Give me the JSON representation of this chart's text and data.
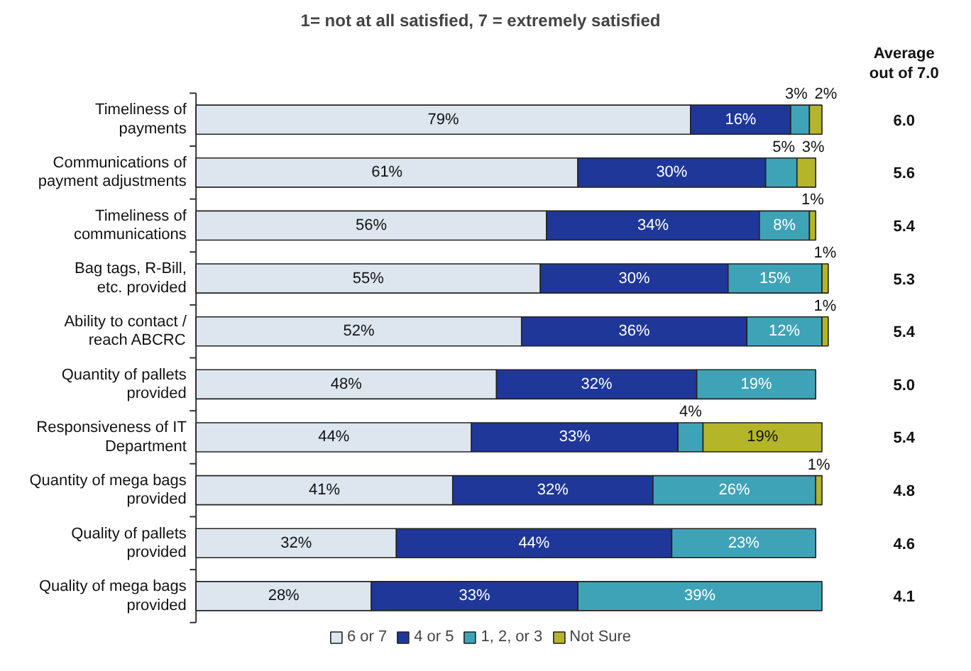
{
  "chart_data": {
    "type": "bar",
    "orientation": "horizontal",
    "stacked": true,
    "title": "1= not at all satisfied, 7 = extremely satisfied",
    "categories": [
      "Timeliness of payments",
      "Communications of payment adjustments",
      "Timeliness of communications",
      "Bag tags, R-Bill, etc. provided",
      "Ability to contact / reach ABCRC",
      "Quantity of pallets provided",
      "Responsiveness of IT Department",
      "Quantity of mega bags provided",
      "Quality of pallets provided",
      "Quality of mega bags provided"
    ],
    "series": [
      {
        "name": "6 or 7",
        "color": "#dde6ef",
        "values": [
          79,
          61,
          56,
          55,
          52,
          48,
          44,
          41,
          32,
          28
        ],
        "value_labels": [
          "79%",
          "61%",
          "56%",
          "55%",
          "52%",
          "48%",
          "44%",
          "41%",
          "32%",
          "28%"
        ]
      },
      {
        "name": "4 or 5",
        "color": "#1f3799",
        "values": [
          16,
          30,
          34,
          30,
          36,
          32,
          33,
          32,
          44,
          33
        ],
        "value_labels": [
          "16%",
          "30%",
          "34%",
          "30%",
          "36%",
          "32%",
          "33%",
          "32%",
          "44%",
          "33%"
        ]
      },
      {
        "name": "1, 2, or 3",
        "color": "#3fa3b8",
        "values": [
          3,
          5,
          8,
          15,
          12,
          19,
          4,
          26,
          23,
          39
        ],
        "value_labels": [
          "3%",
          "5%",
          "8%",
          "15%",
          "12%",
          "19%",
          "4%",
          "26%",
          "23%",
          "39%"
        ]
      },
      {
        "name": "Not Sure",
        "color": "#b5b52a",
        "values": [
          2,
          3,
          1,
          1,
          1,
          null,
          19,
          1,
          null,
          null
        ],
        "value_labels": [
          "2%",
          "3%",
          "1%",
          "1%",
          "1%",
          null,
          "19%",
          "1%",
          null,
          null
        ]
      }
    ],
    "annotations": [
      "Average\nout of 7.0",
      "6.0",
      "5.6",
      "5.4",
      "5.3",
      "5.4",
      "5.0",
      "5.4",
      "4.8",
      "4.6",
      "4.1"
    ],
    "legend": "bottom",
    "grid": false,
    "tick_labels": "y"
  }
}
